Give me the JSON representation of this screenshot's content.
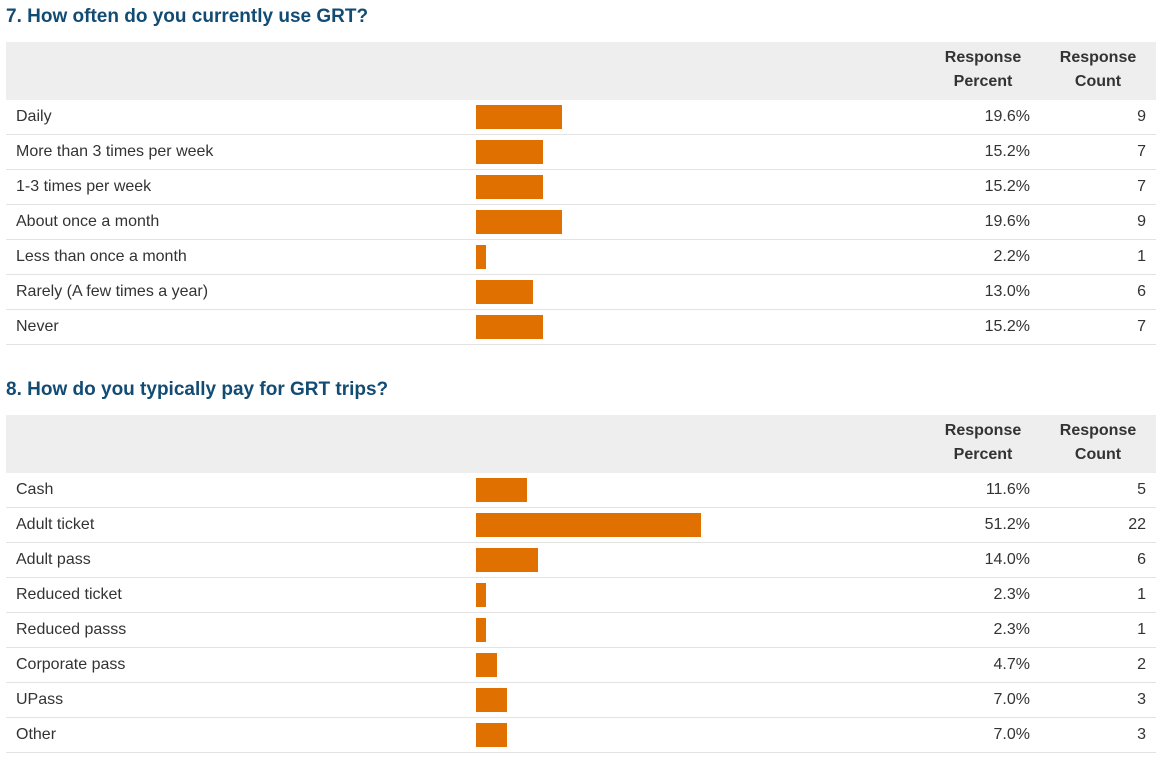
{
  "colors": {
    "title": "#124c74",
    "bar": "#e07000",
    "header_bg": "#eeeeee",
    "row_border": "#e3e3e3"
  },
  "bar_scale_max_percent": 51.2,
  "questions": [
    {
      "title": "7. How often do you currently use GRT?",
      "header": {
        "percent_line1": "Response",
        "percent_line2": "Percent",
        "count_line1": "Response",
        "count_line2": "Count"
      },
      "rows": [
        {
          "label": "Daily",
          "percent": "19.6%",
          "value": 19.6,
          "count": "9"
        },
        {
          "label": "More than 3 times per week",
          "percent": "15.2%",
          "value": 15.2,
          "count": "7"
        },
        {
          "label": "1-3 times per week",
          "percent": "15.2%",
          "value": 15.2,
          "count": "7"
        },
        {
          "label": "About once a month",
          "percent": "19.6%",
          "value": 19.6,
          "count": "9"
        },
        {
          "label": "Less than once a month",
          "percent": "2.2%",
          "value": 2.2,
          "count": "1"
        },
        {
          "label": "Rarely (A few times a year)",
          "percent": "13.0%",
          "value": 13.0,
          "count": "6"
        },
        {
          "label": "Never",
          "percent": "15.2%",
          "value": 15.2,
          "count": "7"
        }
      ]
    },
    {
      "title": "8. How do you typically pay for GRT trips?",
      "header": {
        "percent_line1": "Response",
        "percent_line2": "Percent",
        "count_line1": "Response",
        "count_line2": "Count"
      },
      "rows": [
        {
          "label": "Cash",
          "percent": "11.6%",
          "value": 11.6,
          "count": "5"
        },
        {
          "label": "Adult ticket",
          "percent": "51.2%",
          "value": 51.2,
          "count": "22"
        },
        {
          "label": "Adult pass",
          "percent": "14.0%",
          "value": 14.0,
          "count": "6"
        },
        {
          "label": "Reduced ticket",
          "percent": "2.3%",
          "value": 2.3,
          "count": "1"
        },
        {
          "label": "Reduced passs",
          "percent": "2.3%",
          "value": 2.3,
          "count": "1"
        },
        {
          "label": "Corporate pass",
          "percent": "4.7%",
          "value": 4.7,
          "count": "2"
        },
        {
          "label": "UPass",
          "percent": "7.0%",
          "value": 7.0,
          "count": "3"
        },
        {
          "label": "Other",
          "percent": "7.0%",
          "value": 7.0,
          "count": "3"
        }
      ]
    }
  ]
}
